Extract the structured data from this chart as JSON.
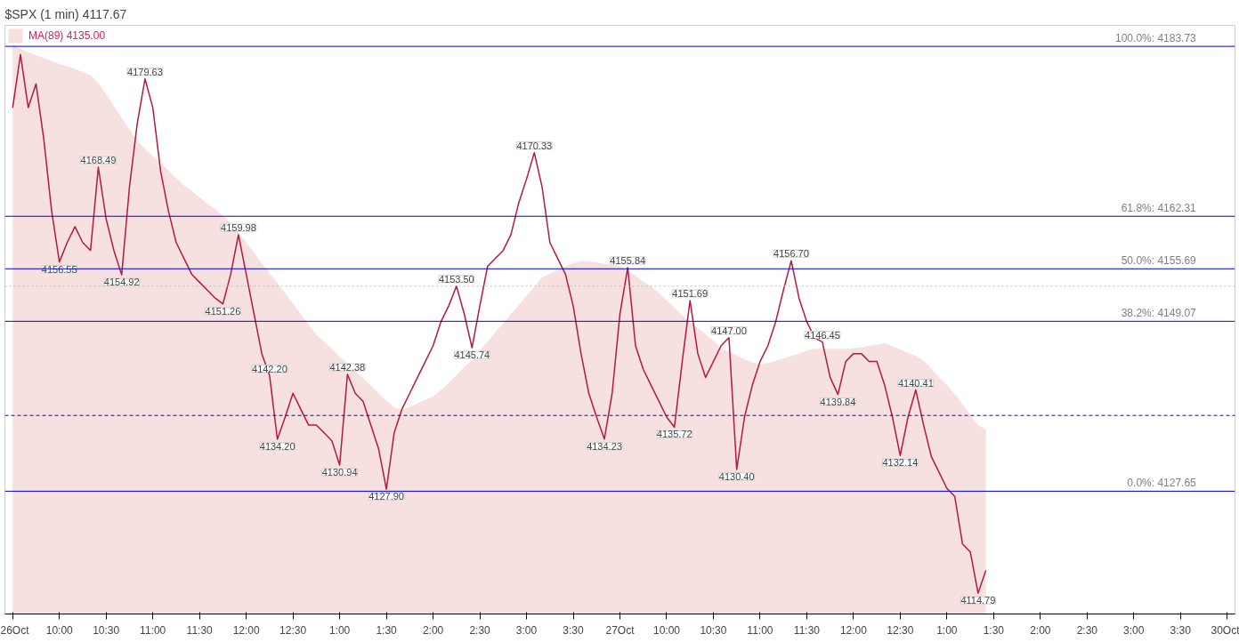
{
  "chart_data": {
    "type": "line",
    "title": "$SPX (1 min) 4117.67",
    "legend": "top left",
    "grid": false,
    "line_style": "solid",
    "marker": "none",
    "tick_labels": "x",
    "categories": [
      "26Oct",
      null,
      null,
      null,
      null,
      null,
      "10:00",
      null,
      null,
      null,
      null,
      null,
      "10:30",
      null,
      null,
      null,
      null,
      null,
      "11:00",
      null,
      null,
      null,
      null,
      null,
      "11:30",
      null,
      null,
      null,
      null,
      null,
      "12:00",
      null,
      null,
      null,
      null,
      null,
      "12:30",
      null,
      null,
      null,
      null,
      null,
      "1:00",
      null,
      null,
      null,
      null,
      null,
      "1:30",
      null,
      null,
      null,
      null,
      null,
      "2:00",
      null,
      null,
      null,
      null,
      null,
      "2:30",
      null,
      null,
      null,
      null,
      null,
      "3:00",
      null,
      null,
      null,
      null,
      null,
      "3:30",
      null,
      null,
      null,
      null,
      null,
      "27Oct",
      null,
      null,
      null,
      null,
      null,
      "10:00",
      null,
      null,
      null,
      null,
      null,
      "10:30",
      null,
      null,
      null,
      null,
      null,
      "11:00",
      null,
      null,
      null,
      null,
      null,
      "11:30",
      null,
      null,
      null,
      null,
      null,
      "12:00",
      null,
      null,
      null,
      null,
      null,
      "12:30",
      null,
      null,
      null,
      null,
      null,
      "1:00",
      null,
      null,
      null,
      null,
      null,
      "1:30",
      null,
      null,
      null,
      null,
      null,
      "2:00",
      null,
      null,
      null,
      null,
      null,
      "2:30",
      null,
      null,
      null,
      null,
      null,
      "3:00",
      null,
      null,
      null,
      null,
      null,
      "3:30",
      null,
      null,
      null,
      null,
      null,
      "30Oct"
    ],
    "series": [
      {
        "type": "area",
        "name": "MA(89) 4135.00",
        "color": "#f6e0e0",
        "values": [
          4184,
          4183.4,
          4183,
          4182.6,
          4182.3,
          4181.9,
          4181.5,
          4181.2,
          4180.9,
          4180.5,
          4180.1,
          4179.1,
          4177.7,
          4176.2,
          4174.7,
          4173.3,
          4171.8,
          4170.8,
          4169.9,
          4169,
          4168.1,
          4167.1,
          4166.2,
          4165.5,
          4164.7,
          4163.9,
          4163.2,
          4162.4,
          4161.5,
          4160.2,
          4159,
          4157.7,
          4156.4,
          4155.1,
          4153.9,
          4152.6,
          4151.3,
          4150,
          4148.7,
          4147.4,
          4146.5,
          4145.6,
          4144.6,
          4143.7,
          4142.8,
          4141.9,
          4141,
          4140,
          4139.1,
          4138.2,
          4137.9,
          4138.3,
          4138.7,
          4139.2,
          4139.6,
          4140.4,
          4141.3,
          4142.3,
          4143.3,
          4144.2,
          4145.4,
          4146.5,
          4147.7,
          4148.8,
          4150,
          4151.1,
          4152.3,
          4153.4,
          4154.6,
          4155.1,
          4155.5,
          4156,
          4156.4,
          4156.7,
          4156.6,
          4156.5,
          4156.3,
          4156.2,
          4156,
          4155.4,
          4154.8,
          4154.1,
          4153.5,
          4152.6,
          4151.7,
          4150.8,
          4149.8,
          4149,
          4148.2,
          4147.4,
          4146.6,
          4145.7,
          4145.2,
          4144.8,
          4144.3,
          4143.9,
          4143.6,
          4143.8,
          4144.1,
          4144.4,
          4144.7,
          4145,
          4145.4,
          4145.6,
          4145.6,
          4145.6,
          4145.6,
          4145.6,
          4145.7,
          4145.8,
          4146,
          4146.1,
          4146.3,
          4145.9,
          4145.5,
          4145.1,
          4144.7,
          4144.1,
          4143.1,
          4142,
          4141,
          4139.9,
          4138.6,
          4137.3,
          4136,
          4135.5,
          null,
          null,
          null,
          null,
          null,
          null,
          null,
          null,
          null,
          null,
          null,
          null,
          null,
          null,
          null,
          null,
          null,
          null,
          null,
          null,
          null,
          null,
          null,
          null,
          null,
          null,
          null,
          null,
          null,
          null,
          null
        ]
      },
      {
        "color": "#b01c3c",
        "values": [
          4176,
          4182.7,
          4176,
          4179,
          4172,
          4163,
          4156.55,
          4159,
          4161,
          4159,
          4158,
          4168.49,
          4162,
          4158,
          4154.92,
          4166,
          4174,
          4179.63,
          4176,
          4168,
          4163,
          4159,
          4157,
          4155,
          4154,
          4153,
          4152,
          4151.26,
          4155,
          4159.98,
          4155,
          4150,
          4145,
          4142.2,
          4134.2,
          4137,
          4140,
          4138,
          4136,
          4136,
          4135,
          4134,
          4130.94,
          4142.38,
          4140,
          4139,
          4136,
          4133,
          4127.9,
          4135,
          4138,
          4140,
          4142,
          4144,
          4146,
          4149,
          4151,
          4153.5,
          4150,
          4145.74,
          4151,
          4156,
          4157,
          4158,
          4160,
          4164,
          4167,
          4170.33,
          4166,
          4159,
          4157,
          4155,
          4151,
          4145,
          4140,
          4137,
          4134.23,
          4140,
          4150,
          4155.84,
          4146,
          4143,
          4141,
          4139,
          4137,
          4135.72,
          4144,
          4151.69,
          4145,
          4142,
          4144,
          4146,
          4147.0,
          4130.4,
          4137,
          4141,
          4144,
          4146,
          4149,
          4153,
          4156.7,
          4152,
          4149,
          4147,
          4146.45,
          4142,
          4139.84,
          4144,
          4145,
          4145,
          4144,
          4144,
          4141,
          4137,
          4132.14,
          4137,
          4140.41,
          4136,
          4132,
          4130,
          4128,
          4127,
          4121,
          4120,
          4114.79,
          4117.67,
          null,
          null,
          null,
          null,
          null,
          null,
          null,
          null,
          null,
          null,
          null,
          null,
          null,
          null,
          null,
          null,
          null,
          null,
          null,
          null,
          null,
          null,
          null,
          null,
          null,
          null,
          null,
          null,
          null,
          null,
          null
        ],
        "value_labels": [
          null,
          null,
          null,
          null,
          null,
          null,
          "4156.55",
          null,
          null,
          null,
          null,
          "4168.49",
          null,
          null,
          "4154.92",
          null,
          null,
          "4179.63",
          null,
          null,
          null,
          null,
          null,
          null,
          null,
          null,
          null,
          "4151.26",
          null,
          "4159.98",
          null,
          null,
          null,
          "4142.20",
          "4134.20",
          null,
          null,
          null,
          null,
          null,
          null,
          null,
          "4130.94",
          "4142.38",
          null,
          null,
          null,
          null,
          "4127.90",
          null,
          null,
          null,
          null,
          null,
          null,
          null,
          null,
          "4153.50",
          null,
          "4145.74",
          null,
          null,
          null,
          null,
          null,
          null,
          null,
          "4170.33",
          null,
          null,
          null,
          null,
          null,
          null,
          null,
          null,
          "4134.23",
          null,
          null,
          "4155.84",
          null,
          null,
          null,
          null,
          null,
          "4135.72",
          null,
          "4151.69",
          null,
          null,
          null,
          null,
          "4147.00",
          "4130.40",
          null,
          null,
          null,
          null,
          null,
          null,
          "4156.70",
          null,
          null,
          null,
          "4146.45",
          null,
          "4139.84",
          null,
          null,
          null,
          null,
          null,
          null,
          null,
          "4132.14",
          null,
          "4140.41",
          null,
          null,
          null,
          null,
          null,
          null,
          null,
          "4114.79",
          null,
          null,
          null,
          null,
          null,
          null,
          null,
          null,
          null,
          null,
          null,
          null,
          null,
          null,
          null,
          null,
          null,
          null,
          null,
          null,
          null,
          null,
          null,
          null,
          null,
          null,
          null,
          null,
          null,
          null,
          null,
          null
        ]
      }
    ],
    "ylim": [
      4112.17,
      4186.38
    ],
    "ref_lines": [
      {
        "axis": "y",
        "value": 4183.73,
        "label": "100.0%: 4183.73",
        "color": "#0000dd"
      },
      {
        "axis": "y",
        "value": 4162.31,
        "label": "61.8%: 4162.31",
        "color": "#0000dd"
      },
      {
        "axis": "y",
        "value": 4155.69,
        "label": "50.0%: 4155.69",
        "color": "#0000dd"
      },
      {
        "axis": "y",
        "value": 4149.07,
        "label": "38.2%: 4149.07",
        "color": "#0000dd"
      },
      {
        "axis": "y",
        "value": 4127.65,
        "label": "0.0%: 4127.65",
        "color": "#0000dd"
      },
      {
        "axis": "y",
        "value": 4137.2,
        "color": "#0000dd",
        "line_style": "dashed"
      },
      {
        "axis": "y",
        "value": 4153.5,
        "color": "#bbbbbb",
        "line_style": "dotted"
      }
    ]
  }
}
